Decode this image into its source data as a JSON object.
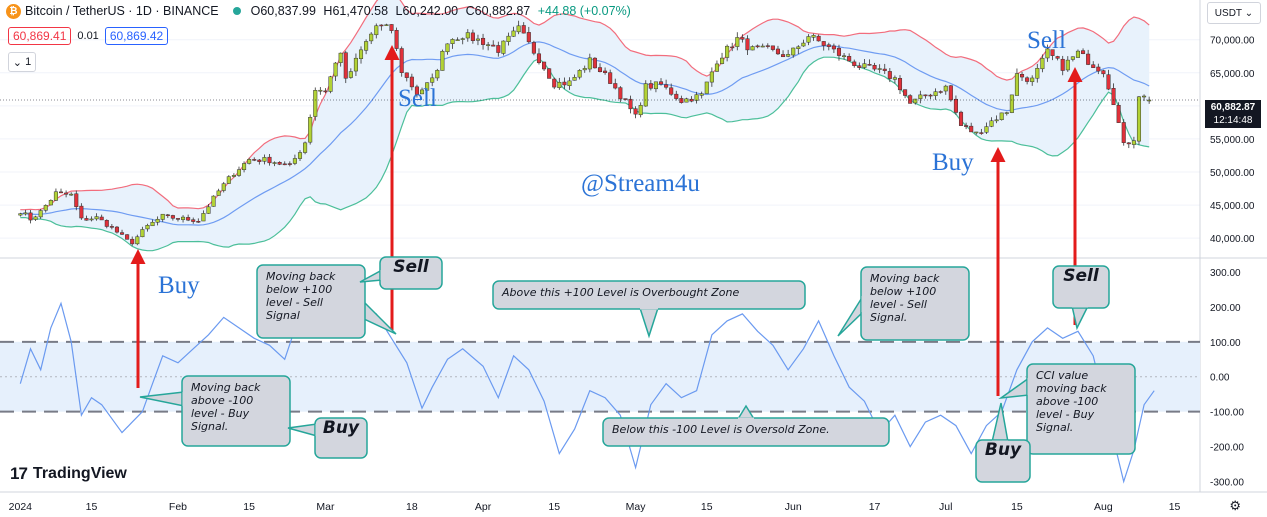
{
  "header": {
    "symbol": "Bitcoin / TetherUS · 1D · BINANCE",
    "logo_letter": "₿",
    "ohlc": {
      "open": "O60,837.99",
      "high": "H61,470.58",
      "low": "L60,242.00",
      "close": "C60,882.87",
      "change": "+44.88 (+0.07%)"
    }
  },
  "bidask": {
    "bid": "60,869.41",
    "spread": "0.01",
    "ask": "60,869.42"
  },
  "collapse_label": "1",
  "currency": "USDT",
  "last_price": {
    "price": "60,882.87",
    "countdown": "12:14:48"
  },
  "brand": "TradingView",
  "colors": {
    "up": "#b2d235",
    "down": "#e0313a",
    "bb_upper": "#f26d7d",
    "bb_lower": "#4cbf9a",
    "bb_basis": "#6f9cf2",
    "bb_fill": "#e8f2fc",
    "cci": "#6b9af0",
    "annotation": "#2b73d6",
    "arrow": "#e31b1b"
  },
  "chart_data": [
    {
      "type": "candlestick",
      "title": "Bitcoin / TetherUS · 1D · BINANCE",
      "indicator": "Bollinger Bands",
      "ylim": [
        37000,
        76000
      ],
      "yticks": [
        "70,000.00",
        "65,000.00",
        "60,000.00",
        "55,000.00",
        "50,000.00",
        "45,000.00",
        "40,000.00"
      ],
      "ytick_values": [
        70000,
        65000,
        60000,
        55000,
        50000,
        45000,
        40000
      ],
      "x_start": "2023-12-28",
      "x_end": "2024-08-20",
      "xticks": [
        "2024",
        "15",
        "Feb",
        "15",
        "Mar",
        "18",
        "Apr",
        "15",
        "May",
        "15",
        "Jun",
        "17",
        "Jul",
        "15",
        "Aug",
        "15"
      ],
      "xtick_dates": [
        "2024-01-01",
        "2024-01-15",
        "2024-02-01",
        "2024-02-15",
        "2024-03-01",
        "2024-03-18",
        "2024-04-01",
        "2024-04-15",
        "2024-05-01",
        "2024-05-15",
        "2024-06-01",
        "2024-06-17",
        "2024-07-01",
        "2024-07-15",
        "2024-08-01",
        "2024-08-15"
      ],
      "close": [
        {
          "date": "2024-01-01",
          "close": 44100
        },
        {
          "date": "2024-01-03",
          "close": 42900
        },
        {
          "date": "2024-01-05",
          "close": 44000
        },
        {
          "date": "2024-01-08",
          "close": 46800
        },
        {
          "date": "2024-01-11",
          "close": 46500
        },
        {
          "date": "2024-01-13",
          "close": 42800
        },
        {
          "date": "2024-01-16",
          "close": 43100
        },
        {
          "date": "2024-01-19",
          "close": 41600
        },
        {
          "date": "2024-01-22",
          "close": 39600
        },
        {
          "date": "2024-01-23",
          "close": 39400
        },
        {
          "date": "2024-01-26",
          "close": 41800
        },
        {
          "date": "2024-01-29",
          "close": 43300
        },
        {
          "date": "2024-02-01",
          "close": 43000
        },
        {
          "date": "2024-02-05",
          "close": 42700
        },
        {
          "date": "2024-02-09",
          "close": 47100
        },
        {
          "date": "2024-02-12",
          "close": 49900
        },
        {
          "date": "2024-02-15",
          "close": 51900
        },
        {
          "date": "2024-02-19",
          "close": 51800
        },
        {
          "date": "2024-02-23",
          "close": 50800
        },
        {
          "date": "2024-02-26",
          "close": 54500
        },
        {
          "date": "2024-02-28",
          "close": 62500
        },
        {
          "date": "2024-03-01",
          "close": 62400
        },
        {
          "date": "2024-03-04",
          "close": 68300
        },
        {
          "date": "2024-03-05",
          "close": 63700
        },
        {
          "date": "2024-03-08",
          "close": 68300
        },
        {
          "date": "2024-03-11",
          "close": 72100
        },
        {
          "date": "2024-03-14",
          "close": 71500
        },
        {
          "date": "2024-03-16",
          "close": 65300
        },
        {
          "date": "2024-03-19",
          "close": 61900
        },
        {
          "date": "2024-03-22",
          "close": 63800
        },
        {
          "date": "2024-03-25",
          "close": 69900
        },
        {
          "date": "2024-03-28",
          "close": 70700
        },
        {
          "date": "2024-04-01",
          "close": 69700
        },
        {
          "date": "2024-04-04",
          "close": 68500
        },
        {
          "date": "2024-04-08",
          "close": 71600
        },
        {
          "date": "2024-04-12",
          "close": 67100
        },
        {
          "date": "2024-04-15",
          "close": 63400
        },
        {
          "date": "2024-04-18",
          "close": 63500
        },
        {
          "date": "2024-04-22",
          "close": 66800
        },
        {
          "date": "2024-04-26",
          "close": 63800
        },
        {
          "date": "2024-05-01",
          "close": 58300
        },
        {
          "date": "2024-05-03",
          "close": 62900
        },
        {
          "date": "2024-05-06",
          "close": 63200
        },
        {
          "date": "2024-05-10",
          "close": 60800
        },
        {
          "date": "2024-05-14",
          "close": 61600
        },
        {
          "date": "2024-05-17",
          "close": 66900
        },
        {
          "date": "2024-05-21",
          "close": 70100
        },
        {
          "date": "2024-05-24",
          "close": 68500
        },
        {
          "date": "2024-05-27",
          "close": 68400
        },
        {
          "date": "2024-05-31",
          "close": 67500
        },
        {
          "date": "2024-06-04",
          "close": 70600
        },
        {
          "date": "2024-06-07",
          "close": 69300
        },
        {
          "date": "2024-06-11",
          "close": 67300
        },
        {
          "date": "2024-06-14",
          "close": 66000
        },
        {
          "date": "2024-06-18",
          "close": 65200
        },
        {
          "date": "2024-06-21",
          "close": 64100
        },
        {
          "date": "2024-06-24",
          "close": 60300
        },
        {
          "date": "2024-06-27",
          "close": 61600
        },
        {
          "date": "2024-07-01",
          "close": 62800
        },
        {
          "date": "2024-07-04",
          "close": 57000
        },
        {
          "date": "2024-07-07",
          "close": 55800
        },
        {
          "date": "2024-07-10",
          "close": 57700
        },
        {
          "date": "2024-07-13",
          "close": 59200
        },
        {
          "date": "2024-07-15",
          "close": 64700
        },
        {
          "date": "2024-07-18",
          "close": 63900
        },
        {
          "date": "2024-07-21",
          "close": 68100
        },
        {
          "date": "2024-07-24",
          "close": 65900
        },
        {
          "date": "2024-07-27",
          "close": 68000
        },
        {
          "date": "2024-07-30",
          "close": 66200
        },
        {
          "date": "2024-08-01",
          "close": 65300
        },
        {
          "date": "2024-08-03",
          "close": 60700
        },
        {
          "date": "2024-08-05",
          "close": 54000
        },
        {
          "date": "2024-08-07",
          "close": 55100
        },
        {
          "date": "2024-08-08",
          "close": 61700
        },
        {
          "date": "2024-08-10",
          "close": 60883
        }
      ],
      "last_price": 60882.87
    },
    {
      "type": "line",
      "title": "CCI",
      "ylim": [
        -330,
        340
      ],
      "yticks": [
        "300.00",
        "200.00",
        "100.00",
        "0.00",
        "-100.00",
        "-200.00",
        "-300.00"
      ],
      "ytick_values": [
        300,
        200,
        100,
        0,
        -100,
        -200,
        -300
      ],
      "levels": [
        100,
        -100
      ],
      "series": [
        {
          "values": [
            {
              "date": "2024-01-01",
              "value": -20
            },
            {
              "date": "2024-01-03",
              "value": 80
            },
            {
              "date": "2024-01-05",
              "value": 20
            },
            {
              "date": "2024-01-07",
              "value": 140
            },
            {
              "date": "2024-01-09",
              "value": 210
            },
            {
              "date": "2024-01-11",
              "value": 100
            },
            {
              "date": "2024-01-13",
              "value": -110
            },
            {
              "date": "2024-01-15",
              "value": -60
            },
            {
              "date": "2024-01-17",
              "value": -80
            },
            {
              "date": "2024-01-19",
              "value": -120
            },
            {
              "date": "2024-01-21",
              "value": -160
            },
            {
              "date": "2024-01-23",
              "value": -130
            },
            {
              "date": "2024-01-25",
              "value": -100
            },
            {
              "date": "2024-01-27",
              "value": -20
            },
            {
              "date": "2024-01-29",
              "value": 60
            },
            {
              "date": "2024-02-01",
              "value": 40
            },
            {
              "date": "2024-02-04",
              "value": 80
            },
            {
              "date": "2024-02-07",
              "value": 120
            },
            {
              "date": "2024-02-10",
              "value": 170
            },
            {
              "date": "2024-02-13",
              "value": 140
            },
            {
              "date": "2024-02-16",
              "value": 110
            },
            {
              "date": "2024-02-19",
              "value": 90
            },
            {
              "date": "2024-02-22",
              "value": 50
            },
            {
              "date": "2024-02-25",
              "value": 180
            },
            {
              "date": "2024-02-28",
              "value": 290
            },
            {
              "date": "2024-03-02",
              "value": 200
            },
            {
              "date": "2024-03-05",
              "value": 150
            },
            {
              "date": "2024-03-08",
              "value": 200
            },
            {
              "date": "2024-03-11",
              "value": 180
            },
            {
              "date": "2024-03-14",
              "value": 110
            },
            {
              "date": "2024-03-17",
              "value": 40
            },
            {
              "date": "2024-03-20",
              "value": -90
            },
            {
              "date": "2024-03-22",
              "value": -30
            },
            {
              "date": "2024-03-25",
              "value": 50
            },
            {
              "date": "2024-03-28",
              "value": 80
            },
            {
              "date": "2024-04-01",
              "value": 30
            },
            {
              "date": "2024-04-04",
              "value": -60
            },
            {
              "date": "2024-04-07",
              "value": 60
            },
            {
              "date": "2024-04-10",
              "value": 20
            },
            {
              "date": "2024-04-13",
              "value": -70
            },
            {
              "date": "2024-04-16",
              "value": -220
            },
            {
              "date": "2024-04-19",
              "value": -150
            },
            {
              "date": "2024-04-22",
              "value": -40
            },
            {
              "date": "2024-04-25",
              "value": -60
            },
            {
              "date": "2024-04-28",
              "value": -110
            },
            {
              "date": "2024-05-01",
              "value": -260
            },
            {
              "date": "2024-05-04",
              "value": -80
            },
            {
              "date": "2024-05-07",
              "value": -20
            },
            {
              "date": "2024-05-10",
              "value": -60
            },
            {
              "date": "2024-05-13",
              "value": -40
            },
            {
              "date": "2024-05-16",
              "value": 120
            },
            {
              "date": "2024-05-19",
              "value": 160
            },
            {
              "date": "2024-05-22",
              "value": 180
            },
            {
              "date": "2024-05-25",
              "value": 130
            },
            {
              "date": "2024-05-28",
              "value": 90
            },
            {
              "date": "2024-05-31",
              "value": 20
            },
            {
              "date": "2024-06-03",
              "value": 80
            },
            {
              "date": "2024-06-06",
              "value": 160
            },
            {
              "date": "2024-06-09",
              "value": 60
            },
            {
              "date": "2024-06-12",
              "value": -30
            },
            {
              "date": "2024-06-15",
              "value": -70
            },
            {
              "date": "2024-06-18",
              "value": -160
            },
            {
              "date": "2024-06-21",
              "value": -110
            },
            {
              "date": "2024-06-24",
              "value": -200
            },
            {
              "date": "2024-06-27",
              "value": -130
            },
            {
              "date": "2024-06-30",
              "value": -110
            },
            {
              "date": "2024-07-03",
              "value": -140
            },
            {
              "date": "2024-07-06",
              "value": -220
            },
            {
              "date": "2024-07-09",
              "value": -140
            },
            {
              "date": "2024-07-12",
              "value": -100
            },
            {
              "date": "2024-07-15",
              "value": 20
            },
            {
              "date": "2024-07-18",
              "value": 100
            },
            {
              "date": "2024-07-21",
              "value": 140
            },
            {
              "date": "2024-07-24",
              "value": 110
            },
            {
              "date": "2024-07-27",
              "value": 130
            },
            {
              "date": "2024-07-30",
              "value": 60
            },
            {
              "date": "2024-08-02",
              "value": -120
            },
            {
              "date": "2024-08-05",
              "value": -300
            },
            {
              "date": "2024-08-07",
              "value": -210
            },
            {
              "date": "2024-08-09",
              "value": -80
            },
            {
              "date": "2024-08-11",
              "value": -40
            }
          ]
        }
      ]
    }
  ],
  "annotations": {
    "watermark": "@Stream4u",
    "price_labels": [
      {
        "text": "Buy"
      },
      {
        "text": "Sell"
      },
      {
        "text": "Buy"
      },
      {
        "text": "Sell"
      }
    ],
    "callouts": [
      {
        "text": "Moving back above -100 level - Buy Signal."
      },
      {
        "text": "Buy"
      },
      {
        "text": "Moving back below +100 level - Sell Signal"
      },
      {
        "text": "Sell"
      },
      {
        "text": "Above this +100 Level is Overbought Zone"
      },
      {
        "text": "Below this -100 Level is Oversold Zone."
      },
      {
        "text": "Moving back below +100 level - Sell Signal."
      },
      {
        "text": "Sell"
      },
      {
        "text": "CCI value moving back above -100 level - Buy Signal."
      },
      {
        "text": "Buy"
      }
    ]
  }
}
